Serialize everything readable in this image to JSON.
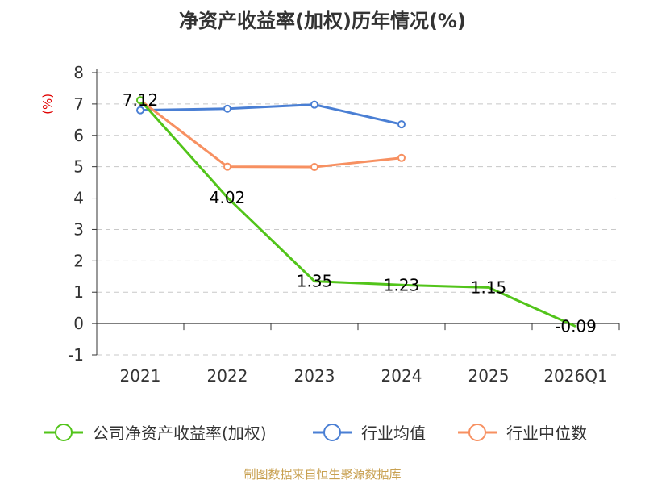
{
  "chart_data": {
    "type": "line",
    "title": "净资产收益率(加权)历年情况(%)",
    "ylabel": "(%)",
    "xlabel": "",
    "categories": [
      "2021",
      "2022",
      "2023",
      "2024",
      "2025",
      "2026Q1"
    ],
    "ylim": [
      -1,
      8
    ],
    "yticks": [
      -1,
      0,
      1,
      2,
      3,
      4,
      5,
      6,
      7,
      8
    ],
    "grid": true,
    "legend_position": "bottom",
    "series": [
      {
        "name": "公司净资产收益率(加权)",
        "color": "#52c41a",
        "values": [
          7.12,
          4.02,
          1.35,
          1.23,
          1.15,
          -0.09
        ],
        "labels": [
          "7.12",
          "4.02",
          "1.35",
          "1.23",
          "1.15",
          "-0.09"
        ]
      },
      {
        "name": "行业均值",
        "color": "#4a7fd4",
        "values": [
          6.8,
          6.85,
          6.98,
          6.35,
          null,
          null
        ]
      },
      {
        "name": "行业中位数",
        "color": "#f79061",
        "values": [
          7.12,
          5.0,
          4.99,
          5.28,
          null,
          null
        ]
      }
    ],
    "source": "制图数据来自恒生聚源数据库"
  }
}
